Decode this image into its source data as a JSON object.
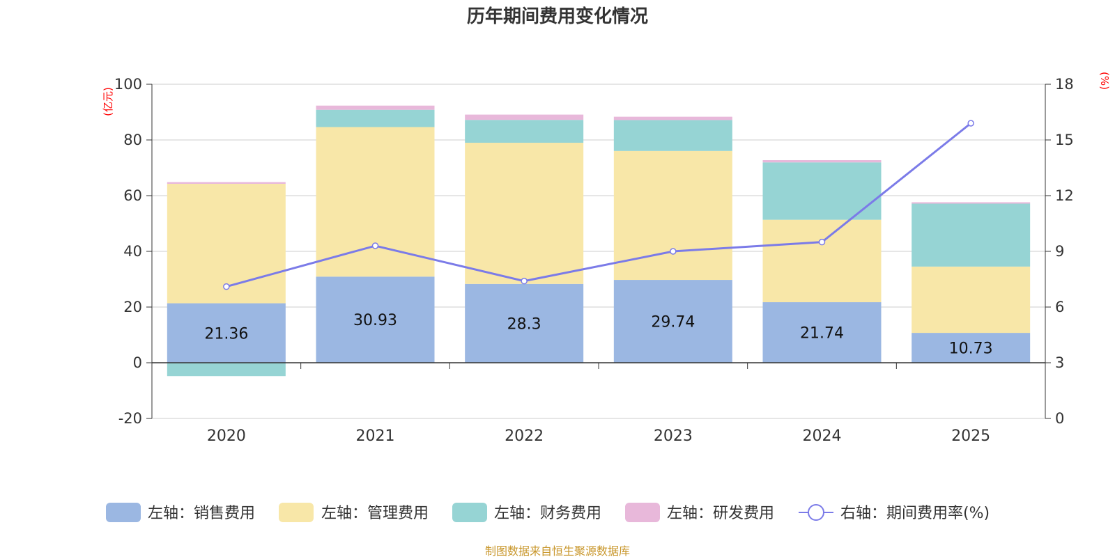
{
  "chart_data": {
    "type": "bar",
    "stacked": true,
    "title": "历年期间费用变化情况",
    "categories": [
      "2020",
      "2021",
      "2022",
      "2023",
      "2024",
      "2025"
    ],
    "series": [
      {
        "name": "左轴：销售费用",
        "axis": "left",
        "color": "#9bb7e2",
        "values": [
          21.36,
          30.93,
          28.3,
          29.74,
          21.74,
          10.73
        ],
        "labels": [
          "21.36",
          "30.93",
          "28.3",
          "29.74",
          "21.74",
          "10.73"
        ]
      },
      {
        "name": "左轴：管理费用",
        "axis": "left",
        "color": "#f8e7a8",
        "values": [
          42.9,
          53.7,
          50.7,
          46.3,
          29.6,
          23.8
        ]
      },
      {
        "name": "左轴：财务费用",
        "axis": "left",
        "color": "#96d4d4",
        "values": [
          -4.8,
          6.2,
          8.2,
          11.1,
          20.6,
          22.6
        ]
      },
      {
        "name": "左轴：研发费用",
        "axis": "left",
        "color": "#e8b8da",
        "values": [
          0.6,
          1.5,
          1.9,
          1.2,
          0.8,
          0.5
        ]
      },
      {
        "name": "右轴：期间费用率(%)",
        "axis": "right",
        "type": "line",
        "color": "#7b7be8",
        "values": [
          7.1,
          9.3,
          7.4,
          9.0,
          9.5,
          15.9
        ]
      }
    ],
    "y_left": {
      "unit": "(亿元)",
      "min": -20,
      "max": 100,
      "ticks": [
        -20,
        0,
        20,
        40,
        60,
        80,
        100
      ]
    },
    "y_right": {
      "unit": "(%)",
      "min": 0,
      "max": 18,
      "ticks": [
        0,
        3,
        6,
        9,
        12,
        15,
        18
      ]
    },
    "grid": true,
    "legend_position": "bottom",
    "source": "制图数据来自恒生聚源数据库"
  }
}
